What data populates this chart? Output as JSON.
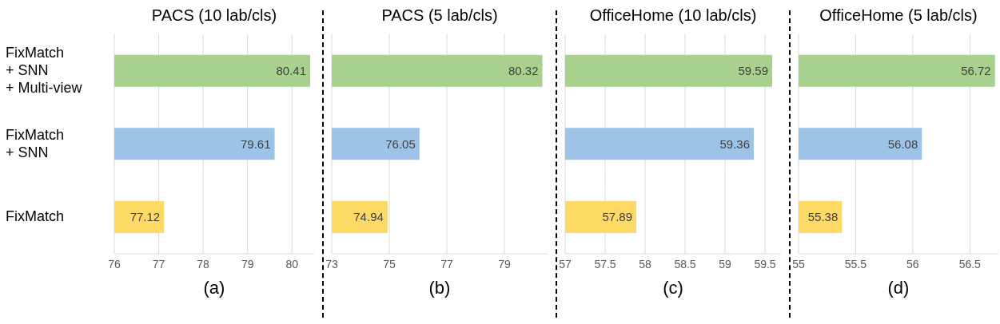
{
  "chart_data": [
    {
      "type": "bar",
      "orientation": "horizontal",
      "title": "PACS (10 lab/cls)",
      "xlabel": "(a)",
      "categories": [
        "FixMatch\n+ SNN\n+ Multi-view",
        "FixMatch\n+ SNN",
        "FixMatch"
      ],
      "values": [
        80.41,
        79.61,
        77.12
      ],
      "colors": [
        "#a9d18e",
        "#9dc3e6",
        "#ffd966"
      ],
      "xlim": [
        76,
        80.5
      ],
      "xticks": [
        76,
        77,
        78,
        79,
        80
      ],
      "grid": "x",
      "data_labels": true
    },
    {
      "type": "bar",
      "orientation": "horizontal",
      "title": "PACS (5 lab/cls)",
      "xlabel": "(b)",
      "categories": [
        null,
        null,
        null
      ],
      "values": [
        80.32,
        76.05,
        74.94
      ],
      "colors": [
        "#a9d18e",
        "#9dc3e6",
        "#ffd966"
      ],
      "xlim": [
        73,
        80.5
      ],
      "xticks": [
        73,
        75,
        77,
        79
      ],
      "grid": "x",
      "data_labels": true,
      "tick_labels": "x"
    },
    {
      "type": "bar",
      "orientation": "horizontal",
      "title": "OfficeHome (10 lab/cls)",
      "xlabel": "(c)",
      "categories": [
        null,
        null,
        null
      ],
      "values": [
        59.59,
        59.36,
        57.89
      ],
      "colors": [
        "#a9d18e",
        "#9dc3e6",
        "#ffd966"
      ],
      "xlim": [
        57,
        59.7
      ],
      "xticks": [
        57,
        57.5,
        58,
        58.5,
        59,
        59.5
      ],
      "grid": "x",
      "data_labels": true,
      "tick_labels": "x"
    },
    {
      "type": "bar",
      "orientation": "horizontal",
      "title": "OfficeHome (5 lab/cls)",
      "xlabel": "(d)",
      "categories": [
        null,
        null,
        null
      ],
      "values": [
        56.72,
        56.08,
        55.38
      ],
      "colors": [
        "#a9d18e",
        "#9dc3e6",
        "#ffd966"
      ],
      "xlim": [
        55,
        56.75
      ],
      "xticks": [
        55,
        55.5,
        56,
        56.5
      ],
      "grid": "x",
      "data_labels": true,
      "tick_labels": "x"
    }
  ]
}
